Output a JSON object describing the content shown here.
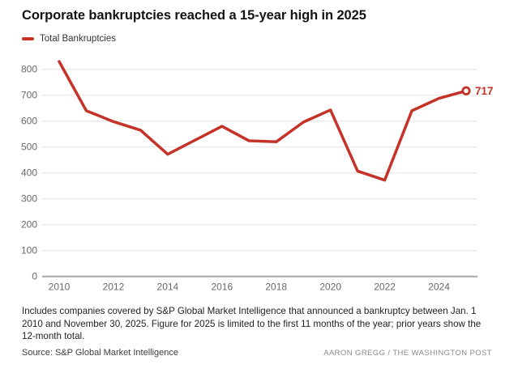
{
  "header": {
    "title": "Corporate bankruptcies reached a 15-year high in 2025",
    "legend_label": "Total Bankruptcies"
  },
  "chart_data": {
    "type": "line",
    "title": "Corporate bankruptcies reached a 15-year high in 2025",
    "x": [
      2010,
      2011,
      2012,
      2013,
      2014,
      2015,
      2016,
      2017,
      2018,
      2019,
      2020,
      2021,
      2022,
      2023,
      2024,
      2025
    ],
    "series": [
      {
        "name": "Total Bankruptcies",
        "color": "#c43228",
        "values": [
          830,
          640,
          598,
          565,
          472,
          526,
          580,
          524,
          520,
          596,
          643,
          407,
          372,
          640,
          688,
          717
        ]
      }
    ],
    "end_label": "717",
    "xlabel": "",
    "ylabel": "",
    "ylim": [
      0,
      850
    ],
    "yticks": [
      0,
      100,
      200,
      300,
      400,
      500,
      600,
      700,
      800
    ],
    "xticks": [
      2010,
      2012,
      2014,
      2016,
      2018,
      2020,
      2022,
      2024
    ],
    "grid": true,
    "legend_position": "top-left"
  },
  "footer": {
    "note": "Includes companies covered by S&P Global Market Intelligence that announced a bankruptcy between Jan. 1 2010 and November 30, 2025. Figure for 2025 is limited to the first 11 months of the year; prior years show the 12-month total.",
    "source": "Source: S&P Global Market Intelligence",
    "credit": "AARON GREGG / THE WASHINGTON POST"
  },
  "colors": {
    "line_red": "#c43228",
    "gridline": "#e4e4e4",
    "axis_line": "#a7a7a7",
    "tick_text": "#686868",
    "title_text": "#141414"
  }
}
